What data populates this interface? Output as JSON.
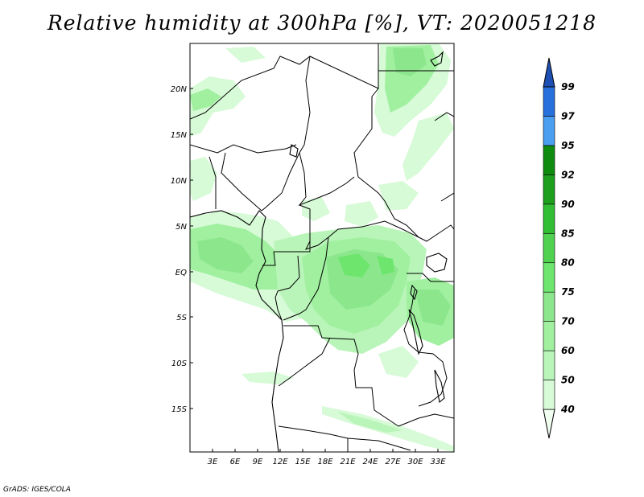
{
  "title": "Relative humidity at 300hPa [%], VT: 2020051218",
  "credit": "GrADS: IGES/COLA",
  "lat_labels": [
    "20N",
    "15N",
    "10N",
    "5N",
    "EQ",
    "5S",
    "10S",
    "15S"
  ],
  "lon_labels": [
    "3E",
    "6E",
    "9E",
    "12E",
    "15E",
    "18E",
    "21E",
    "24E",
    "27E",
    "30E",
    "33E"
  ],
  "colorbar": {
    "levels": [
      "40",
      "50",
      "60",
      "70",
      "75",
      "80",
      "85",
      "90",
      "92",
      "95",
      "97",
      "99"
    ],
    "colors": [
      "#f0fff0",
      "#d7fad7",
      "#b9f5b9",
      "#a0f0a0",
      "#8ce68c",
      "#6ee66e",
      "#50d250",
      "#32be32",
      "#1ea01e",
      "#0f8c0f",
      "#4a9ff0",
      "#2870dc",
      "#1e50b4"
    ]
  }
}
